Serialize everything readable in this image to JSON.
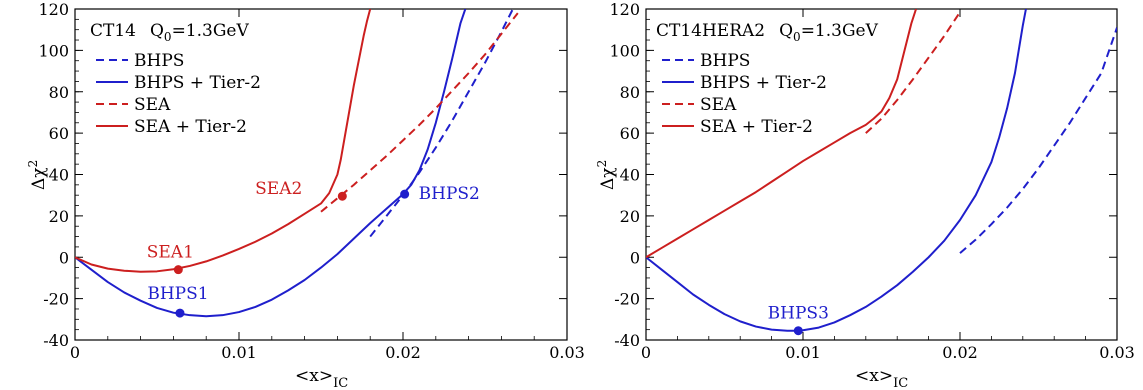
{
  "chart_data": [
    {
      "type": "line",
      "title": "CT14",
      "title_param": "Q",
      "title_param_sub": "0",
      "title_param_value": "=1.3GeV",
      "xlabel": "<x>",
      "xlabel_sub": "IC",
      "ylabel": "Δχ",
      "ylabel_sup": "2",
      "xlim": [
        0,
        0.03
      ],
      "ylim": [
        -40,
        120
      ],
      "x_ticks": [
        "0",
        "0.01",
        "0.02",
        "0.03"
      ],
      "x_tick_values": [
        0,
        0.01,
        0.02,
        0.03
      ],
      "y_ticks": [
        "-40",
        "-20",
        "0",
        "20",
        "40",
        "60",
        "80",
        "100",
        "120"
      ],
      "y_tick_values": [
        -40,
        -20,
        0,
        20,
        40,
        60,
        80,
        100,
        120
      ],
      "legend_position": "top-left",
      "series": [
        {
          "name": "BHPS",
          "color": "#1f1fcc",
          "dash": true,
          "x": [
            0.018,
            0.019,
            0.02,
            0.021,
            0.022,
            0.023,
            0.024,
            0.025,
            0.026,
            0.0267
          ],
          "y": [
            10,
            20,
            30,
            41,
            53,
            66,
            80,
            94,
            109,
            120
          ]
        },
        {
          "name": "BHPS + Tier-2",
          "color": "#1f1fcc",
          "dash": false,
          "x": [
            0,
            0.001,
            0.002,
            0.003,
            0.004,
            0.005,
            0.006,
            0.007,
            0.008,
            0.009,
            0.01,
            0.011,
            0.012,
            0.013,
            0.014,
            0.015,
            0.016,
            0.017,
            0.018,
            0.019,
            0.02,
            0.0205,
            0.021,
            0.0215,
            0.022,
            0.0225,
            0.023,
            0.0235,
            0.0238
          ],
          "y": [
            0,
            -6,
            -12,
            -17,
            -21,
            -24.5,
            -26.8,
            -28,
            -28.5,
            -28,
            -26.5,
            -24,
            -20.5,
            -16,
            -11,
            -5,
            1.5,
            9,
            16.5,
            23.5,
            30.5,
            35,
            42,
            52,
            65,
            80,
            96,
            113,
            120
          ]
        },
        {
          "name": "SEA",
          "color": "#cc1f1f",
          "dash": true,
          "x": [
            0.015,
            0.016,
            0.017,
            0.018,
            0.019,
            0.02,
            0.021,
            0.022,
            0.023,
            0.024,
            0.025,
            0.026,
            0.027
          ],
          "y": [
            22,
            28.5,
            35,
            42,
            49,
            56.5,
            64,
            72,
            80.5,
            89,
            98,
            108,
            118
          ]
        },
        {
          "name": "SEA + Tier-2",
          "color": "#cc1f1f",
          "dash": false,
          "x": [
            0,
            0.001,
            0.002,
            0.003,
            0.004,
            0.005,
            0.006,
            0.007,
            0.008,
            0.009,
            0.01,
            0.011,
            0.012,
            0.013,
            0.014,
            0.015,
            0.0155,
            0.016,
            0.0162,
            0.0164,
            0.0166,
            0.0168,
            0.017,
            0.0172,
            0.0174,
            0.0176,
            0.0178,
            0.018
          ],
          "y": [
            0,
            -3.5,
            -5.5,
            -6.5,
            -7,
            -6.8,
            -5.8,
            -4.2,
            -2,
            0.8,
            4,
            7.5,
            11.5,
            16,
            21,
            26,
            31,
            40,
            47,
            56,
            65,
            74,
            83,
            91,
            99,
            107,
            114,
            120
          ]
        }
      ],
      "points": [
        {
          "label": "SEA1",
          "x": 0.0063,
          "y": -6,
          "color": "#cc1f1f"
        },
        {
          "label": "BHPS1",
          "x": 0.0064,
          "y": -27,
          "color": "#1f1fcc"
        },
        {
          "label": "SEA2",
          "x": 0.0163,
          "y": 29.5,
          "color": "#cc1f1f"
        },
        {
          "label": "BHPS2",
          "x": 0.0201,
          "y": 30.5,
          "color": "#1f1fcc"
        }
      ]
    },
    {
      "type": "line",
      "title": "CT14HERA2",
      "title_param": "Q",
      "title_param_sub": "0",
      "title_param_value": "=1.3GeV",
      "xlabel": "<x>",
      "xlabel_sub": "IC",
      "ylabel": "Δχ",
      "ylabel_sup": "2",
      "xlim": [
        0,
        0.03
      ],
      "ylim": [
        -40,
        120
      ],
      "x_ticks": [
        "0",
        "0.01",
        "0.02",
        "0.03"
      ],
      "x_tick_values": [
        0,
        0.01,
        0.02,
        0.03
      ],
      "y_ticks": [
        "-40",
        "-20",
        "0",
        "20",
        "40",
        "60",
        "80",
        "100",
        "120"
      ],
      "y_tick_values": [
        -40,
        -20,
        0,
        20,
        40,
        60,
        80,
        100,
        120
      ],
      "legend_position": "top-left",
      "series": [
        {
          "name": "BHPS",
          "color": "#1f1fcc",
          "dash": true,
          "x": [
            0.02,
            0.021,
            0.022,
            0.023,
            0.024,
            0.025,
            0.026,
            0.027,
            0.028,
            0.029,
            0.03
          ],
          "y": [
            2,
            8.5,
            16,
            24,
            33,
            43,
            54,
            65,
            77,
            89,
            111
          ]
        },
        {
          "name": "BHPS + Tier-2",
          "color": "#1f1fcc",
          "dash": false,
          "x": [
            0,
            0.001,
            0.002,
            0.003,
            0.004,
            0.005,
            0.006,
            0.007,
            0.008,
            0.009,
            0.0097,
            0.01,
            0.011,
            0.012,
            0.013,
            0.014,
            0.015,
            0.016,
            0.017,
            0.018,
            0.019,
            0.02,
            0.021,
            0.022,
            0.0225,
            0.023,
            0.0235,
            0.024,
            0.0242
          ],
          "y": [
            0,
            -6,
            -12,
            -18,
            -23,
            -27.5,
            -31,
            -33.5,
            -35,
            -35.5,
            -35.5,
            -35.3,
            -34,
            -31.5,
            -28,
            -24,
            -19,
            -13.5,
            -7,
            0,
            8,
            18,
            30,
            46,
            58,
            72,
            89,
            112,
            120
          ]
        },
        {
          "name": "SEA",
          "color": "#cc1f1f",
          "dash": true,
          "x": [
            0.014,
            0.015,
            0.016,
            0.017,
            0.018,
            0.019,
            0.02
          ],
          "y": [
            60,
            67,
            76,
            86,
            96.5,
            107,
            118.5
          ]
        },
        {
          "name": "SEA + Tier-2",
          "color": "#cc1f1f",
          "dash": false,
          "x": [
            0,
            0.001,
            0.002,
            0.003,
            0.004,
            0.005,
            0.006,
            0.007,
            0.008,
            0.009,
            0.01,
            0.011,
            0.012,
            0.013,
            0.014,
            0.0145,
            0.015,
            0.0155,
            0.016,
            0.0163,
            0.0166,
            0.0169,
            0.0172
          ],
          "y": [
            0,
            4.5,
            9,
            13.5,
            18,
            22.5,
            27,
            31.5,
            36.5,
            41.5,
            46.5,
            51,
            55.5,
            60,
            64,
            67,
            70.5,
            77,
            86,
            95,
            104,
            113,
            120
          ]
        }
      ],
      "points": [
        {
          "label": "BHPS3",
          "x": 0.0097,
          "y": -35.5,
          "color": "#1f1fcc"
        }
      ]
    }
  ]
}
